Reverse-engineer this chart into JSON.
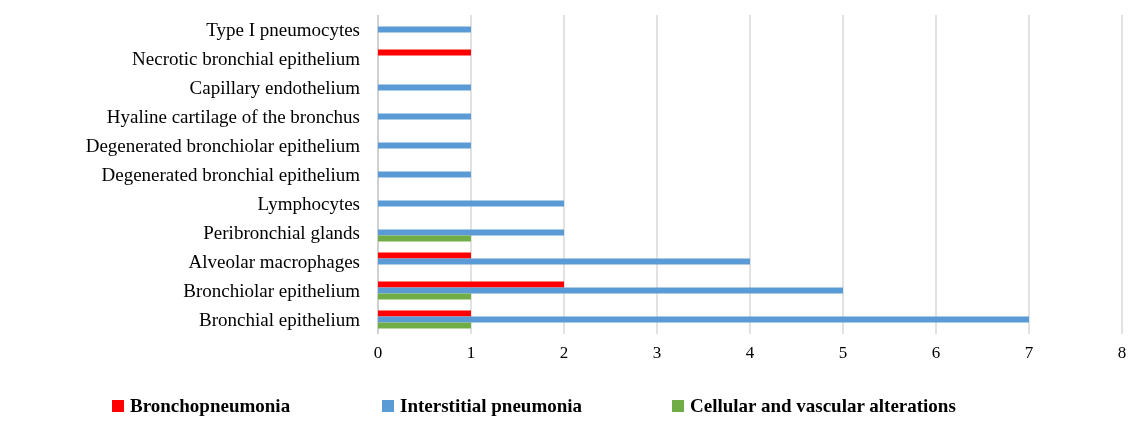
{
  "chart_data": {
    "type": "bar",
    "orientation": "horizontal",
    "categories": [
      "Type I pneumocytes",
      "Necrotic bronchial epithelium",
      "Capillary endothelium",
      "Hyaline cartilage of the bronchus",
      "Degenerated bronchiolar epithelium",
      "Degenerated bronchial epithelium",
      "Lymphocytes",
      "Peribronchial glands",
      "Alveolar macrophages",
      "Bronchiolar epithelium",
      "Bronchial epithelium"
    ],
    "series": [
      {
        "name": "Bronchopneumonia",
        "color": "#ff0000",
        "values": [
          null,
          1,
          null,
          null,
          null,
          null,
          null,
          null,
          1,
          2,
          1
        ]
      },
      {
        "name": "Interstitial pneumonia",
        "color": "#5b9bd5",
        "values": [
          1,
          null,
          1,
          1,
          1,
          1,
          2,
          2,
          4,
          5,
          7
        ]
      },
      {
        "name": "Cellular and vascular alterations",
        "color": "#70ad47",
        "values": [
          null,
          null,
          null,
          null,
          null,
          null,
          null,
          1,
          null,
          1,
          1
        ]
      }
    ],
    "xlim": [
      0,
      8
    ],
    "xticks": [
      0,
      1,
      2,
      3,
      4,
      5,
      6,
      7,
      8
    ],
    "grid": "x",
    "legend": "bottom"
  }
}
